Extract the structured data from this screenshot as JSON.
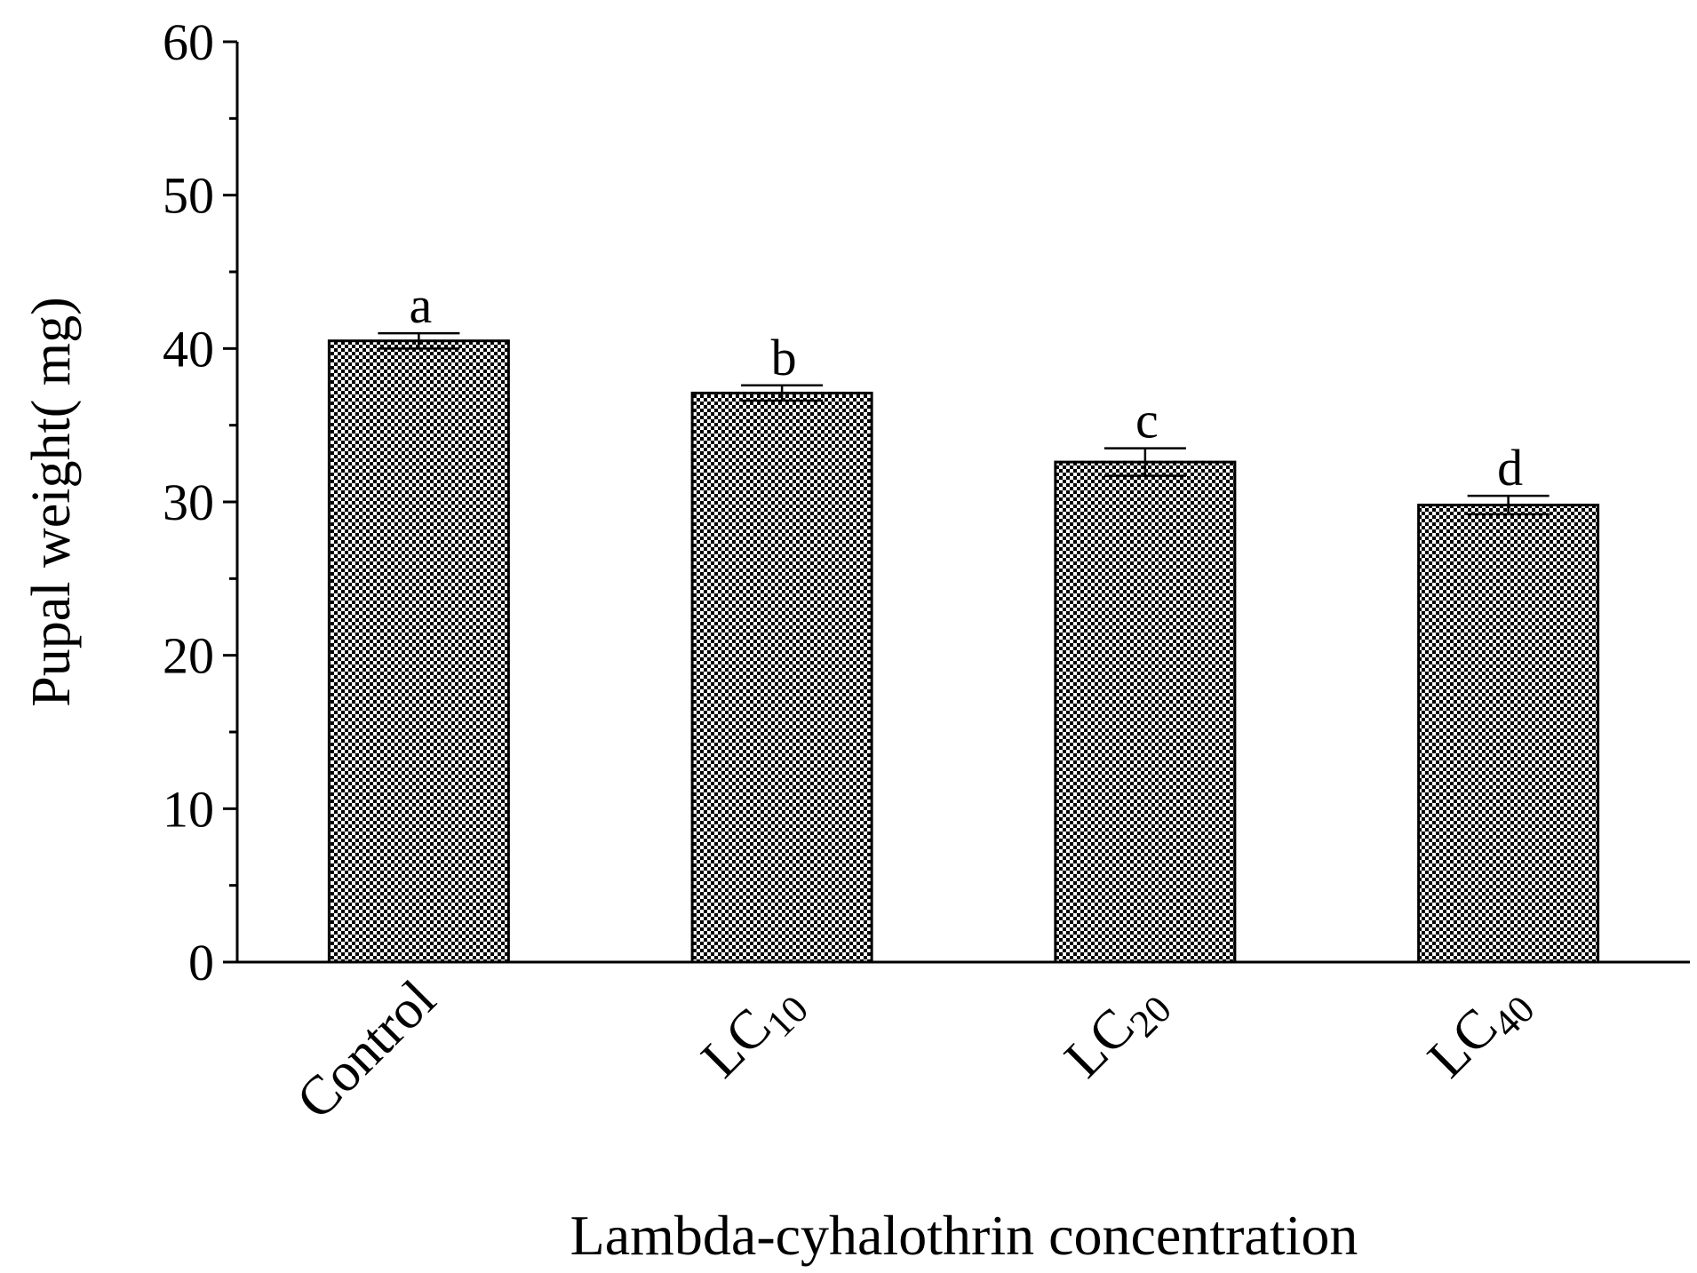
{
  "chart_data": {
    "type": "bar",
    "title": "",
    "xlabel": "Lambda-cyhalothrin concentration",
    "ylabel": "Pupal weight",
    "ylabel_unit": "( mg)",
    "ylim": [
      0,
      60
    ],
    "yticks": [
      0,
      10,
      20,
      30,
      40,
      50,
      60
    ],
    "categories": [
      {
        "base": "Control",
        "sub": ""
      },
      {
        "base": "LC",
        "sub": "10"
      },
      {
        "base": "LC",
        "sub": "20"
      },
      {
        "base": "LC",
        "sub": "40"
      }
    ],
    "values": [
      40.5,
      37.1,
      32.6,
      29.8
    ],
    "errors": [
      0.5,
      0.5,
      0.9,
      0.6
    ],
    "significance_letters": [
      "a",
      "b",
      "c",
      "d"
    ],
    "bar_fill": "checkerboard",
    "colors": {
      "bar_dark": "#000000",
      "bar_light": "#ffffff",
      "axis": "#000000"
    }
  }
}
